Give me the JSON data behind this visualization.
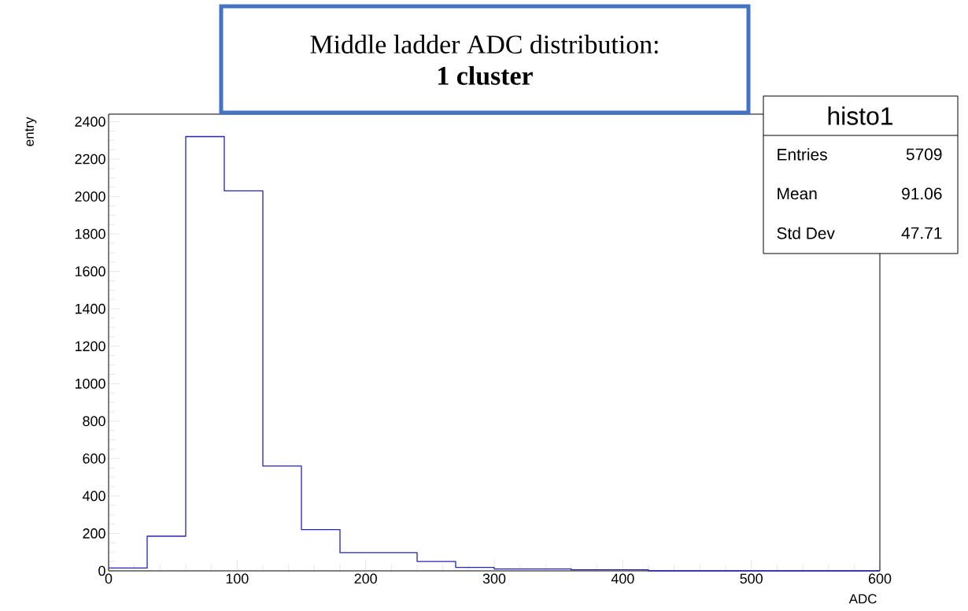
{
  "chart_data": {
    "type": "histogram",
    "title": "Middle ladder ADC distribution:",
    "subtitle": "1 cluster",
    "xlabel": "ADC",
    "ylabel": "entry",
    "bins": [
      0,
      30,
      60,
      90,
      120,
      150,
      180,
      210,
      240,
      270,
      300,
      330,
      360,
      390,
      420,
      450,
      480,
      510,
      540,
      570,
      600
    ],
    "values": [
      15,
      185,
      2320,
      2030,
      560,
      220,
      97,
      97,
      50,
      18,
      10,
      10,
      6,
      6,
      0,
      0,
      0,
      0,
      0,
      0
    ],
    "color": "#2424b8",
    "xlim": [
      0,
      600
    ],
    "xticks": [
      0,
      100,
      200,
      300,
      400,
      500,
      600
    ],
    "ylim": [
      0,
      2440
    ],
    "yticks": [
      0,
      200,
      400,
      600,
      800,
      1000,
      1200,
      1400,
      1600,
      1800,
      2000,
      2200,
      2400
    ],
    "annotations": [
      "histo1",
      "Entries",
      "5709",
      "Mean",
      "91.06",
      "Std Dev",
      "47.71"
    ]
  }
}
